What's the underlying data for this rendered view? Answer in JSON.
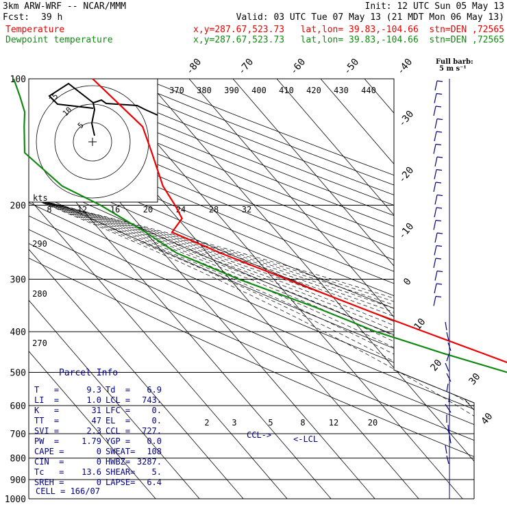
{
  "header": {
    "model": "3km ARW-WRF -- NCAR/MMM",
    "init": "Init: 12 UTC Sun 05 May 13",
    "fcst_label": "Fcst:",
    "fcst_value": "39 h",
    "valid": "Valid: 03 UTC Tue 07 May 13 (21 MDT Mon 06 May 13)",
    "temp_label": "Temperature",
    "temp_info": "x,y=287.67,523.73   lat,lon= 39.83,-104.66  stn=DEN ,72565",
    "dew_label": "Dewpoint temperature",
    "dew_info": "x,y=287.67,523.73   lat,lon= 39.83,-104.66  stn=DEN ,72565",
    "barb_legend_1": "Full barb:",
    "barb_legend_2": "5 m s⁻¹"
  },
  "colors": {
    "temperature": "#ee0000",
    "dewpoint": "#118811",
    "wind": "#000080",
    "parcel_text": "#000080"
  },
  "chart_data": {
    "type": "line",
    "title": "",
    "y_axis": {
      "label": "",
      "scale": "log",
      "ticks": [
        100,
        200,
        300,
        400,
        500,
        600,
        700,
        800,
        900,
        1000
      ]
    },
    "isotherm_labels": [
      -80,
      -70,
      -60,
      -50,
      -40,
      -30,
      -20,
      -10,
      0,
      10,
      20,
      30,
      40
    ],
    "theta_e_labels": [
      370,
      380,
      390,
      400,
      410,
      420,
      430,
      440
    ],
    "theta_labels": [
      290,
      280,
      270
    ],
    "mixing_ratio_labels_upper": [
      "8",
      "12",
      "16",
      "20",
      "24",
      "28",
      "32"
    ],
    "mixing_ratio_labels_lower": [
      "2",
      "3",
      "5",
      "8",
      "12",
      "20"
    ],
    "series": [
      {
        "name": "Temperature",
        "color": "#ee0000",
        "points": [
          [
            100,
            -52
          ],
          [
            130,
            -50
          ],
          [
            150,
            -53
          ],
          [
            180,
            -57
          ],
          [
            200,
            -58
          ],
          [
            215,
            -59
          ],
          [
            232,
            -64
          ],
          [
            260,
            -57
          ],
          [
            300,
            -47
          ],
          [
            360,
            -34
          ],
          [
            400,
            -26
          ],
          [
            450,
            -17
          ],
          [
            500,
            -9
          ],
          [
            550,
            -3
          ],
          [
            600,
            2
          ],
          [
            650,
            6
          ],
          [
            700,
            7.5
          ],
          [
            750,
            9
          ],
          [
            790,
            9.3
          ],
          [
            800,
            7
          ]
        ]
      },
      {
        "name": "Dewpoint temperature",
        "color": "#118811",
        "points": [
          [
            100,
            -70
          ],
          [
            110,
            -72
          ],
          [
            120,
            -74
          ],
          [
            130,
            -77
          ],
          [
            150,
            -82
          ],
          [
            180,
            -80
          ],
          [
            200,
            -75
          ],
          [
            232,
            -70
          ],
          [
            260,
            -67
          ],
          [
            300,
            -58
          ],
          [
            350,
            -46
          ],
          [
            400,
            -37
          ],
          [
            450,
            -26
          ],
          [
            500,
            -15
          ],
          [
            550,
            -8
          ],
          [
            600,
            -2
          ],
          [
            650,
            2
          ],
          [
            700,
            4
          ],
          [
            760,
            4
          ],
          [
            800,
            6.9
          ]
        ]
      }
    ],
    "annotations": {
      "ccl": "CCL",
      "lcl": "LCL"
    },
    "hodograph": {
      "axis_label": "kts",
      "ring_labels": [
        "5",
        "10",
        "15"
      ]
    }
  },
  "parcel": {
    "title": "Parcel Info",
    "rows": [
      {
        "l1": "T   =",
        "v1": "9.3",
        "l2": "Td  =",
        "v2": "6.9"
      },
      {
        "l1": "LI  =",
        "v1": "1.0",
        "l2": "LCL =",
        "v2": "743."
      },
      {
        "l1": "K   =",
        "v1": "31",
        "l2": "LFC =",
        "v2": "0."
      },
      {
        "l1": "TT  =",
        "v1": "47",
        "l2": "EL  =",
        "v2": "0."
      },
      {
        "l1": "SVI =",
        "v1": "2.3",
        "l2": "CCL =",
        "v2": "727."
      },
      {
        "l1": "PW  =",
        "v1": "1.79",
        "l2": "YGP =",
        "v2": "0.0"
      },
      {
        "l1": "CAPE =",
        "v1": "0",
        "l2": "SWEAT=",
        "v2": "108"
      },
      {
        "l1": "CIN  =",
        "v1": "0",
        "l2": "HWBZ=",
        "v2": "3287."
      },
      {
        "l1": "Tc   =",
        "v1": "13.6",
        "l2": "SHEAR=",
        "v2": "5."
      },
      {
        "l1": "SREH =",
        "v1": "0",
        "l2": "LAPSE=",
        "v2": "6.4"
      }
    ],
    "cell": "CELL = 166/07"
  }
}
